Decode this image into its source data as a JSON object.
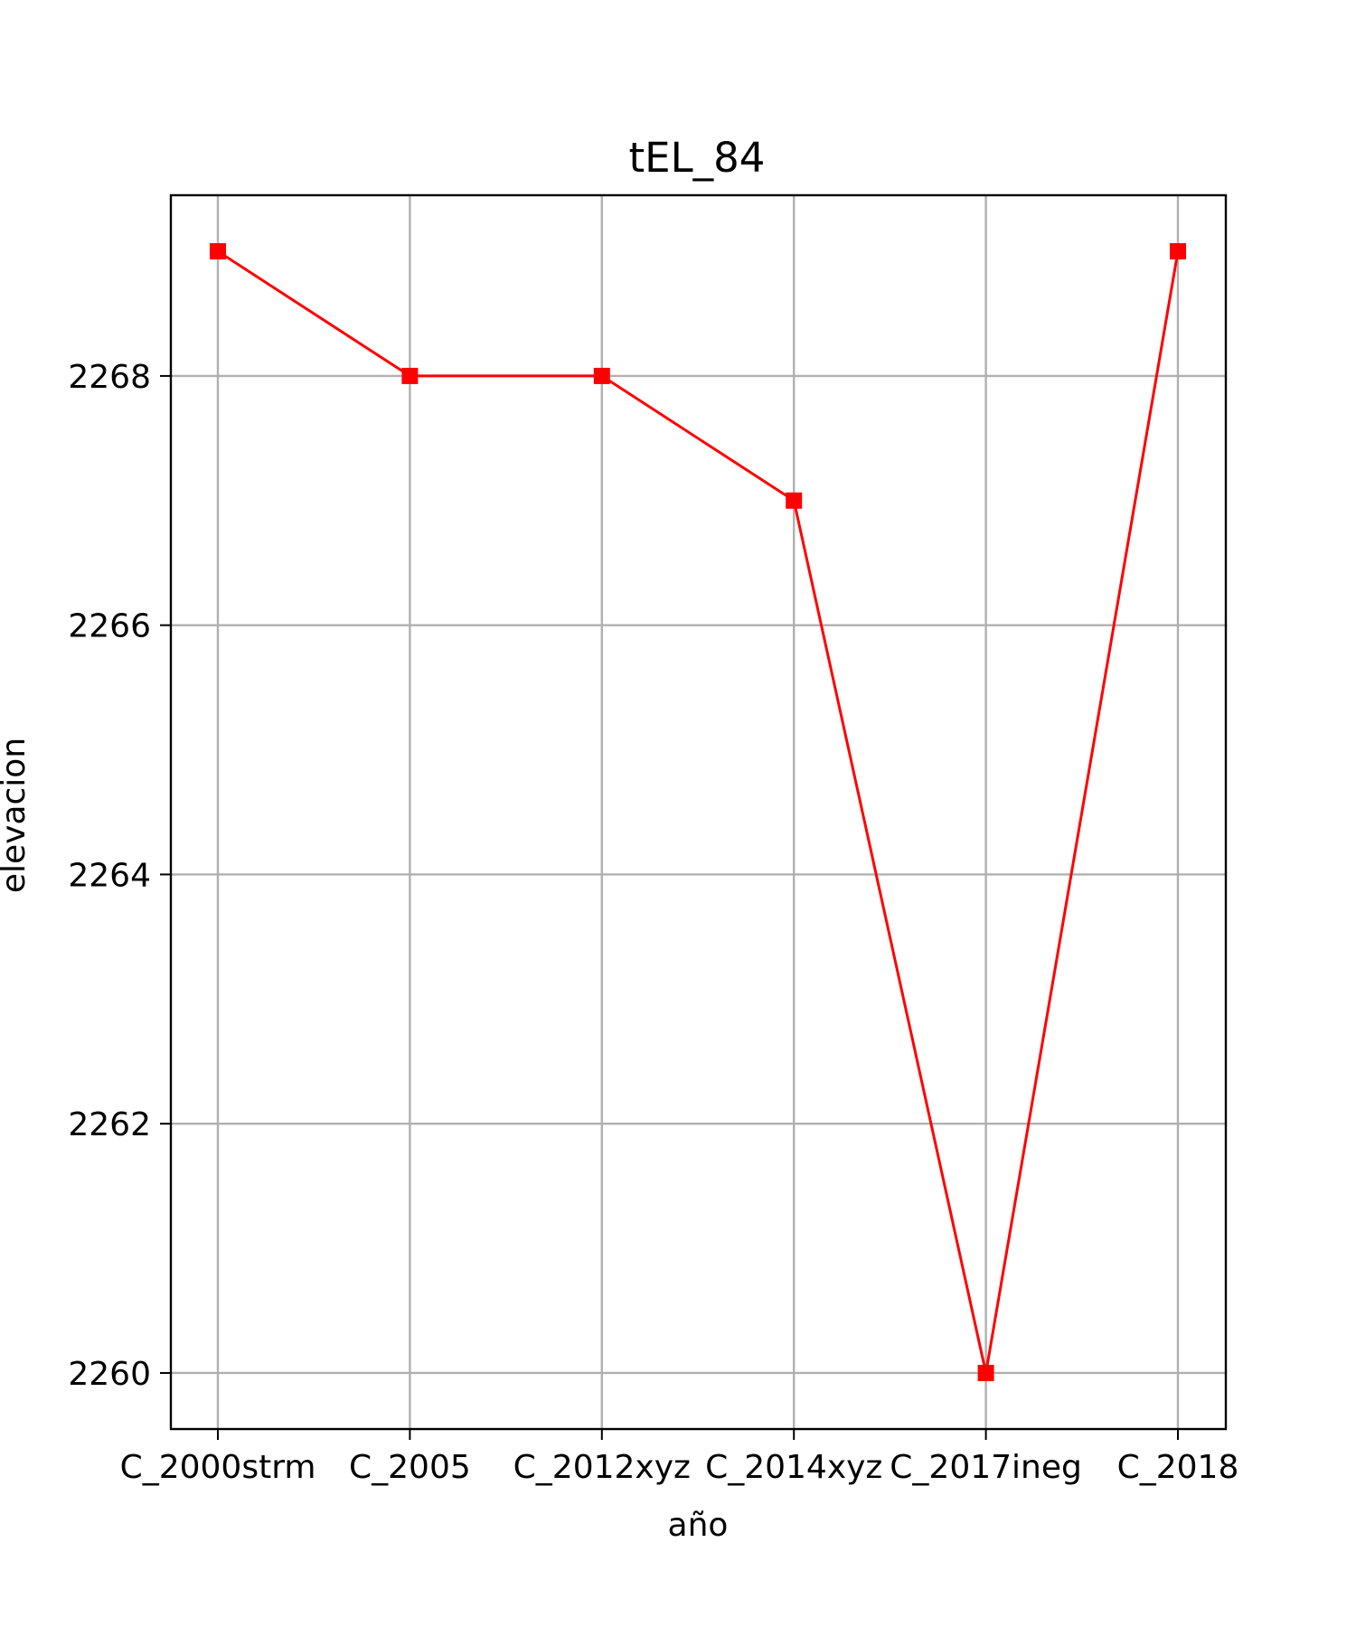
{
  "chart_data": {
    "type": "line",
    "title": "tEL_84",
    "xlabel": "año",
    "ylabel": "elevacion",
    "categories": [
      "C_2000strm",
      "C_2005",
      "C_2012xyz",
      "C_2014xyz",
      "C_2017ineg",
      "C_2018"
    ],
    "series": [
      {
        "values": [
          2269,
          2268,
          2268,
          2267,
          2260,
          2269
        ],
        "color": "#ff0000",
        "marker": "square"
      }
    ],
    "ylim": [
      2259.55,
      2269.45
    ],
    "yticks": [
      2260,
      2262,
      2264,
      2266,
      2268
    ],
    "ytick_labels": [
      "2260",
      "2262",
      "2264",
      "2266",
      "2268"
    ],
    "grid": true,
    "legend": "none"
  }
}
